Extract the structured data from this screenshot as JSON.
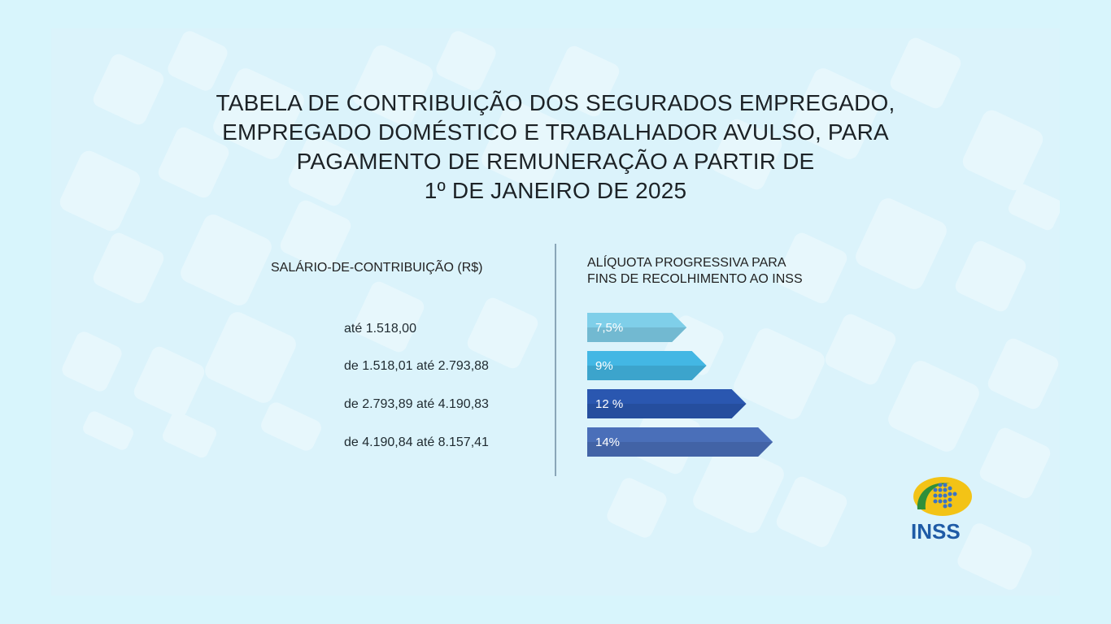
{
  "title_lines": [
    "TABELA DE CONTRIBUIÇÃO DOS SEGURADOS EMPREGADO,",
    "EMPREGADO DOMÉSTICO E TRABALHADOR AVULSO, PARA",
    "PAGAMENTO DE REMUNERAÇÃO A PARTIR DE",
    "1º DE JANEIRO DE 2025"
  ],
  "left_header": "SALÁRIO-DE-CONTRIBUIÇÃO (R$)",
  "right_header_lines": [
    "ALÍQUOTA PROGRESSIVA PARA",
    "FINS DE RECOLHIMENTO AO INSS"
  ],
  "logo_text": "INSS",
  "colors": {
    "background": "#d8f5fc",
    "bar_1": "#7fcfe9",
    "bar_2": "#43b7e4",
    "bar_3": "#2a57b0",
    "bar_4": "#4a6fb9"
  },
  "chart_data": {
    "type": "bar",
    "orientation": "horizontal",
    "categories": [
      "até 1.518,00",
      "de 1.518,01 até 2.793,88",
      "de 2.793,89 até 4.190,83",
      "de 4.190,84 até 8.157,41"
    ],
    "values": [
      7.5,
      9,
      12,
      14
    ],
    "value_labels": [
      "7,5%",
      "9%",
      "12 %",
      "14%"
    ],
    "colors": [
      "#7fcfe9",
      "#43b7e4",
      "#2a57b0",
      "#4a6fb9"
    ]
  }
}
